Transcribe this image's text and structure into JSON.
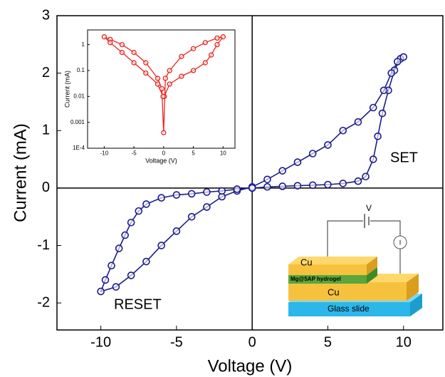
{
  "chart_data": [
    {
      "type": "line",
      "x_label": "Voltage (V)",
      "y_label": "Current (mA)",
      "color": "#1c1c8c",
      "x": [
        0,
        1,
        2,
        3,
        4,
        5,
        6,
        7,
        7.5,
        8,
        8.3,
        8.6,
        9,
        9.4,
        9.8,
        10,
        9.6,
        9.2,
        8.7,
        8,
        7,
        6,
        5,
        4,
        3,
        2,
        1,
        0,
        -1,
        -2,
        -3,
        -4,
        -5,
        -6,
        -7,
        -8,
        -9,
        -10,
        -9.7,
        -9.3,
        -8.8,
        -8.4,
        -8,
        -7.5,
        -7,
        -6,
        -5,
        -4,
        -3,
        -2,
        -1,
        0
      ],
      "values": [
        0,
        0.02,
        0.03,
        0.04,
        0.05,
        0.06,
        0.08,
        0.12,
        0.2,
        0.5,
        0.9,
        1.3,
        1.7,
        2.05,
        2.25,
        2.28,
        2.2,
        2.0,
        1.7,
        1.4,
        1.15,
        1.0,
        0.75,
        0.6,
        0.45,
        0.3,
        0.15,
        0.02,
        -0.05,
        -0.15,
        -0.33,
        -0.5,
        -0.75,
        -1.0,
        -1.28,
        -1.52,
        -1.72,
        -1.8,
        -1.6,
        -1.35,
        -1.05,
        -0.82,
        -0.6,
        -0.4,
        -0.28,
        -0.17,
        -0.12,
        -0.1,
        -0.07,
        -0.05,
        -0.02,
        0
      ],
      "xlim": [
        -12.9,
        12.6
      ],
      "ylim": [
        -2.47,
        3
      ],
      "xticks": [
        -10,
        -5,
        0,
        5,
        10
      ],
      "yticks": [
        -2,
        -1,
        0,
        1,
        2,
        3
      ],
      "annotations": [
        "SET",
        "RESET"
      ]
    },
    {
      "type": "line",
      "log_y": true,
      "x_label": "Voltage (V)",
      "y_label": "Current (mA)",
      "color": "#e8241f",
      "x": [
        0.1,
        1,
        3,
        5,
        7,
        8,
        9,
        10,
        9,
        7,
        5,
        3,
        1,
        0.3,
        0,
        -0.3,
        -1,
        -3,
        -5,
        -7,
        -9,
        -10,
        -9,
        -7,
        -5,
        -3,
        -1,
        -0.1
      ],
      "values": [
        0.01,
        0.03,
        0.06,
        0.1,
        0.2,
        0.4,
        1,
        2,
        1.8,
        1.2,
        0.7,
        0.35,
        0.1,
        0.05,
        0.0004,
        0.02,
        0.05,
        0.2,
        0.5,
        1,
        1.6,
        2,
        1.2,
        0.5,
        0.2,
        0.08,
        0.03,
        0.01
      ],
      "xlim": [
        -12.8,
        12
      ],
      "ylim": [
        0.0001,
        3.7
      ],
      "xticks": [
        -10,
        -5,
        0,
        5,
        10
      ],
      "yticks": [
        1,
        0.1,
        0.01,
        0.001,
        {
          "value": 0.0001,
          "label": "1E-4"
        }
      ]
    }
  ],
  "schematic": {
    "top_electrode": "Cu",
    "layer": "Mg@5AP hydrogel",
    "bottom_electrode": "Cu",
    "substrate": "Glass slide",
    "source": "V",
    "meter": "I"
  }
}
